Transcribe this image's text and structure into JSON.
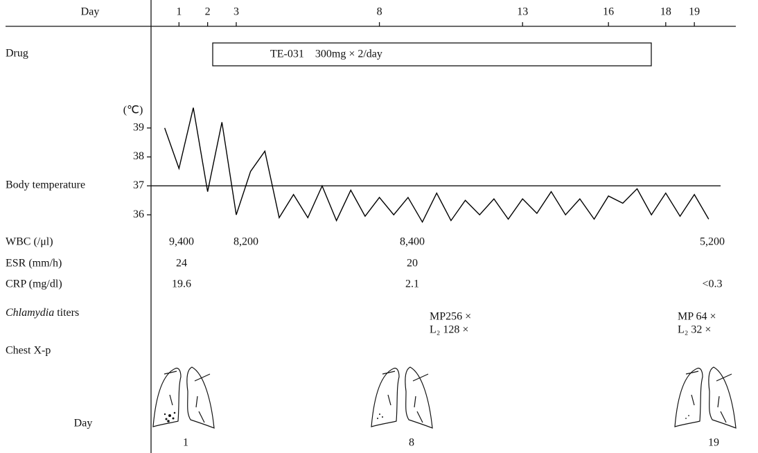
{
  "chart_data": {
    "type": "line",
    "x_label": "Day",
    "y_label": "(℃)",
    "x": [
      0.5,
      1,
      1.5,
      2,
      2.5,
      3,
      3.5,
      4,
      4.5,
      5,
      5.5,
      6,
      6.5,
      7,
      7.5,
      8,
      8.5,
      9,
      9.5,
      10,
      10.5,
      11,
      11.5,
      12,
      12.5,
      13,
      13.5,
      14,
      14.5,
      15,
      15.5,
      16,
      16.5,
      17,
      17.5,
      18,
      18.5,
      19,
      19.5
    ],
    "series": [
      {
        "name": "Body temperature",
        "color": "#000000",
        "values": [
          39.0,
          37.6,
          39.7,
          36.8,
          39.2,
          36.0,
          37.5,
          38.2,
          35.9,
          36.7,
          35.9,
          37.0,
          35.8,
          36.85,
          35.95,
          36.6,
          36.0,
          36.6,
          35.75,
          36.75,
          35.8,
          36.5,
          36.0,
          36.55,
          35.85,
          36.55,
          36.05,
          36.8,
          36.0,
          36.55,
          35.85,
          36.65,
          36.4,
          36.9,
          36.0,
          36.75,
          35.95,
          36.7,
          35.85
        ]
      }
    ],
    "xlim": [
      0,
      20.4
    ],
    "xticks": [
      1,
      2,
      3,
      8,
      13,
      16,
      18,
      19
    ],
    "ylim": [
      35.5,
      40
    ],
    "yticks": [
      36,
      37,
      38,
      39
    ],
    "reference_line": 37
  },
  "drug": {
    "label": "Drug",
    "text": "TE-031　300mg × 2/day"
  },
  "labs": [
    {
      "label": "WBC (/μl)",
      "values": [
        "9,400",
        "8,200",
        "8,400",
        "5,200"
      ]
    },
    {
      "label": "ESR (mm/h)",
      "values": [
        "24",
        "20"
      ]
    },
    {
      "label": "CRP (mg/dl)",
      "values": [
        "19.6",
        "2.1",
        "<0.3"
      ]
    }
  ],
  "titers": {
    "organism": "Chlamydia",
    "suffix": "titers",
    "entries": [
      [
        "MP256 ×",
        "L₂ 128 ×"
      ],
      [
        "MP 64 ×",
        "L₂ 32 ×"
      ]
    ]
  },
  "xray": {
    "label": "Chest X-p",
    "day_label": "Day",
    "days": [
      "1",
      "8",
      "19"
    ]
  }
}
